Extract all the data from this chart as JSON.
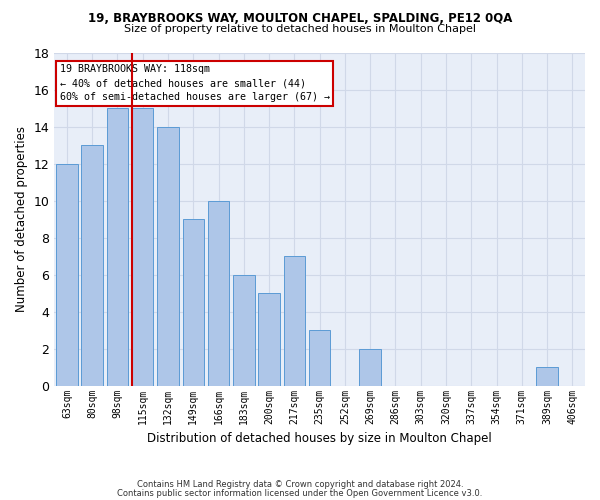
{
  "title1": "19, BRAYBROOKS WAY, MOULTON CHAPEL, SPALDING, PE12 0QA",
  "title2": "Size of property relative to detached houses in Moulton Chapel",
  "xlabel": "Distribution of detached houses by size in Moulton Chapel",
  "ylabel": "Number of detached properties",
  "categories": [
    "63sqm",
    "80sqm",
    "98sqm",
    "115sqm",
    "132sqm",
    "149sqm",
    "166sqm",
    "183sqm",
    "200sqm",
    "217sqm",
    "235sqm",
    "252sqm",
    "269sqm",
    "286sqm",
    "303sqm",
    "320sqm",
    "337sqm",
    "354sqm",
    "371sqm",
    "389sqm",
    "406sqm"
  ],
  "values": [
    12,
    13,
    15,
    15,
    14,
    9,
    10,
    6,
    5,
    7,
    3,
    0,
    2,
    0,
    0,
    0,
    0,
    0,
    0,
    1,
    0
  ],
  "bar_color": "#aec6e8",
  "bar_edge_color": "#5b9bd5",
  "grid_color": "#d0d8e8",
  "bg_color": "#e8eef8",
  "vline_x_index": 3,
  "vline_color": "#cc0000",
  "annotation_line1": "19 BRAYBROOKS WAY: 118sqm",
  "annotation_line2": "← 40% of detached houses are smaller (44)",
  "annotation_line3": "60% of semi-detached houses are larger (67) →",
  "annotation_box_color": "#cc0000",
  "ylim": [
    0,
    18
  ],
  "yticks": [
    0,
    2,
    4,
    6,
    8,
    10,
    12,
    14,
    16,
    18
  ],
  "footer1": "Contains HM Land Registry data © Crown copyright and database right 2024.",
  "footer2": "Contains public sector information licensed under the Open Government Licence v3.0."
}
